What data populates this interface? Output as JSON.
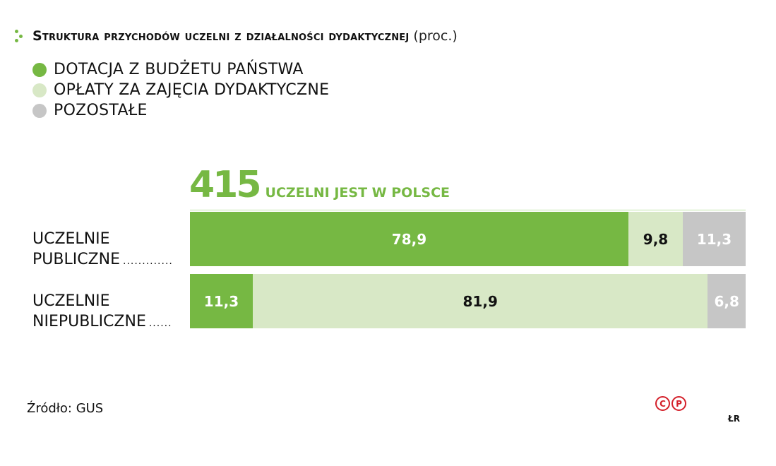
{
  "chart_data": {
    "type": "bar",
    "orientation": "horizontal",
    "stacked": true,
    "title": "Struktura przychodów uczelni z działalności dydaktycznej",
    "unit": "(proc.)",
    "categories": [
      "UCZELNIE PUBLICZNE",
      "UCZELNIE NIEPUBLICZNE"
    ],
    "series": [
      {
        "name": "DOTACJA Z BUDŻETU PAŃSTWA",
        "color": "#76b843",
        "values": [
          78.9,
          11.3
        ],
        "labels": [
          "78,9",
          "11,3"
        ],
        "label_color": "#ffffff"
      },
      {
        "name": "OPŁATY ZA ZAJĘCIA DYDAKTYCZNE",
        "color": "#d8e8c6",
        "values": [
          9.8,
          81.9
        ],
        "labels": [
          "9,8",
          "81,9"
        ],
        "label_color": "#111111"
      },
      {
        "name": "POZOSTAŁE",
        "color": "#c6c6c6",
        "values": [
          11.3,
          6.8
        ],
        "labels": [
          "11,3",
          "6,8"
        ],
        "label_color": "#ffffff"
      }
    ],
    "xlim": [
      0,
      100
    ],
    "legend_position": "top-left",
    "grid": false,
    "annotation": {
      "number": "415",
      "text": "UCZELNI JEST W POLSCE",
      "color": "#76b843"
    }
  },
  "header": {
    "title": "Struktura przychodów uczelni z działalności dydaktycznej",
    "unit": "(proc.)"
  },
  "legend": [
    {
      "label": "DOTACJA Z BUDŻETU PAŃSTWA",
      "color": "#76b843"
    },
    {
      "label": "OPŁATY ZA ZAJĘCIA DYDAKTYCZNE",
      "color": "#d8e8c6"
    },
    {
      "label": "POZOSTAŁE",
      "color": "#c6c6c6"
    }
  ],
  "headline": {
    "number": "415",
    "text": "UCZELNI JEST W POLSCE"
  },
  "rows": [
    {
      "line1": "UCZELNIE",
      "line2": "PUBLICZNE",
      "leader": "............."
    },
    {
      "line1": "UCZELNIE",
      "line2": "NIEPUBLICZNE",
      "leader": "......"
    }
  ],
  "footer": {
    "source": "Źródło: GUS",
    "copyright_c": "C",
    "copyright_p": "P",
    "initials": "ŁR"
  }
}
